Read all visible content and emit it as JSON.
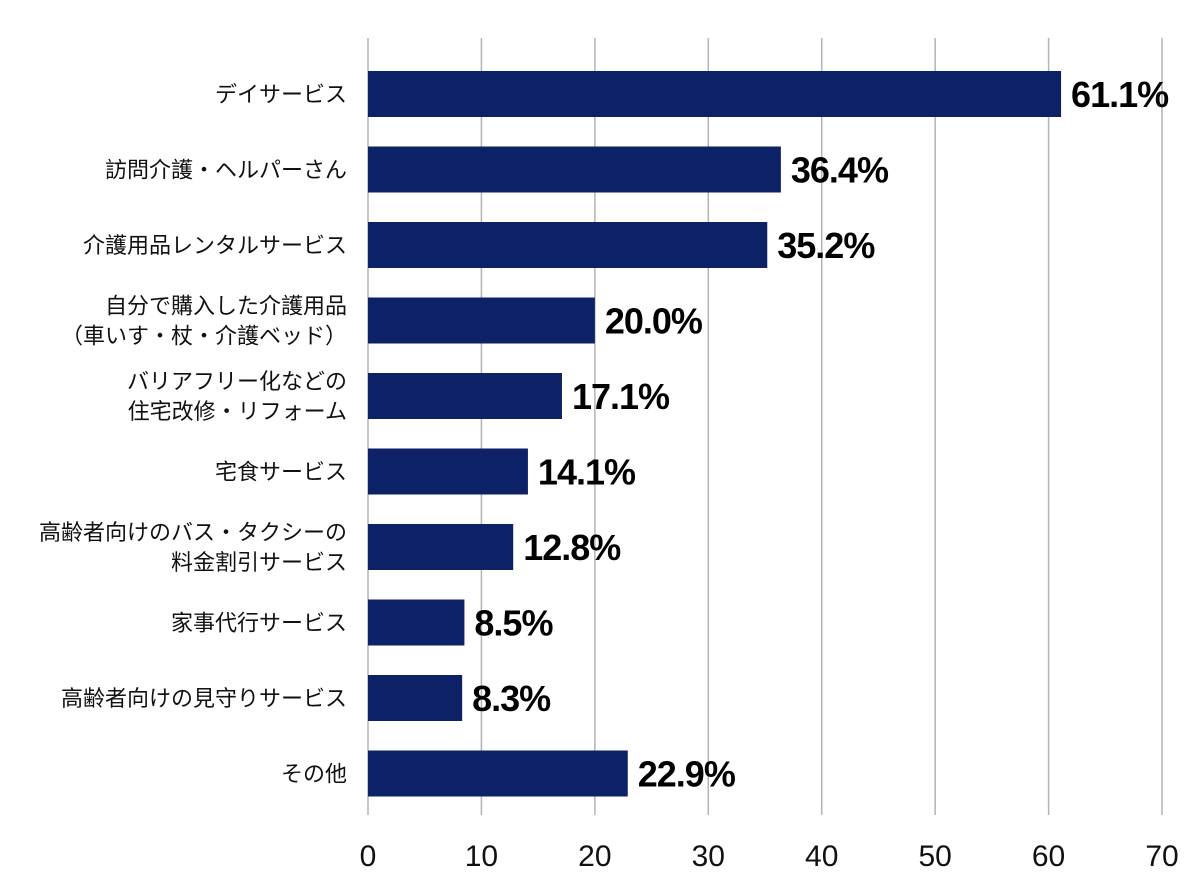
{
  "chart_data": {
    "type": "bar",
    "orientation": "horizontal",
    "title": "",
    "xlabel": "",
    "ylabel": "",
    "xlim": [
      0,
      70
    ],
    "xticks": [
      0,
      10,
      20,
      30,
      40,
      50,
      60,
      70
    ],
    "grid": true,
    "bar_color": "#0d2167",
    "grid_color": "#b3b3b3",
    "categories": [
      [
        "デイサービス"
      ],
      [
        "訪問介護・ヘルパーさん"
      ],
      [
        "介護用品レンタルサービス"
      ],
      [
        "自分で購入した介護用品",
        "（車いす・杖・介護ベッド）"
      ],
      [
        "バリアフリー化などの",
        "住宅改修・リフォーム"
      ],
      [
        "宅食サービス"
      ],
      [
        "高齢者向けのバス・タクシーの",
        "料金割引サービス"
      ],
      [
        "家事代行サービス"
      ],
      [
        "高齢者向けの見守りサービス"
      ],
      [
        "その他"
      ]
    ],
    "values": [
      61.1,
      36.4,
      35.2,
      20.0,
      17.1,
      14.1,
      12.8,
      8.5,
      8.3,
      22.9
    ],
    "value_labels": [
      "61.1%",
      "36.4%",
      "35.2%",
      "20.0%",
      "17.1%",
      "14.1%",
      "12.8%",
      "8.5%",
      "8.3%",
      "22.9%"
    ]
  }
}
